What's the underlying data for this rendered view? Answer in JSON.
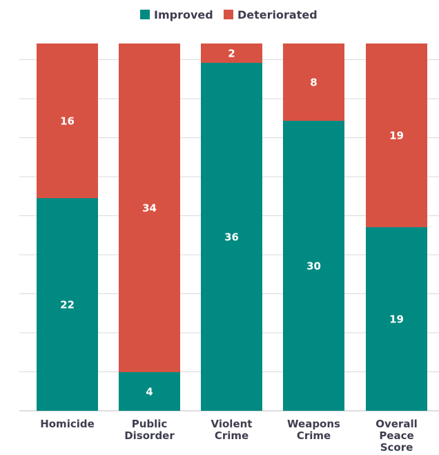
{
  "chart_data": {
    "type": "bar",
    "stacked": true,
    "title": "",
    "xlabel": "",
    "ylabel": "",
    "ylim": [
      0,
      38
    ],
    "grid": true,
    "legend": "top-center",
    "categories": [
      "Homicide",
      "Public Disorder",
      "Violent Crime",
      "Weapons Crime",
      "Overall Peace Score"
    ],
    "category_lines": [
      [
        "Homicide"
      ],
      [
        "Public",
        "Disorder"
      ],
      [
        "Violent",
        "Crime"
      ],
      [
        "Weapons",
        "Crime"
      ],
      [
        "Overall",
        "Peace",
        "Score"
      ]
    ],
    "series": [
      {
        "name": "Improved",
        "color": "#008a82",
        "values": [
          22,
          4,
          36,
          30,
          19
        ]
      },
      {
        "name": "Deteriorated",
        "color": "#d85243",
        "values": [
          16,
          34,
          2,
          8,
          19
        ]
      }
    ]
  }
}
